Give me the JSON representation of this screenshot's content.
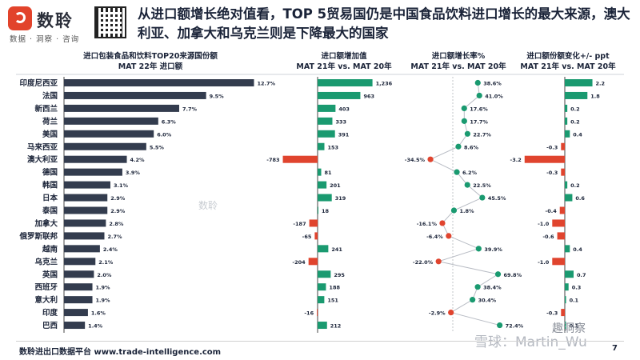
{
  "header": {
    "brand_name": "数聆",
    "brand_tagline": "数据 · 洞察 · 咨询",
    "title": "从进口额增长绝对值看，TOP 5贸易国仍是中国食品饮料进口增长的最大来源，澳大利亚、加拿大和乌克兰则是下降最大的国家"
  },
  "footer": {
    "source": "数聆进出口数据平台 www.trade-intelligence.com",
    "page_number": "7"
  },
  "watermarks": {
    "center_brand": "数聆",
    "social": "趣洞察",
    "platform": "雪球：Martin_Wu"
  },
  "colors": {
    "share_bar": "#333c4e",
    "positive": "#1a9a70",
    "negative": "#e0442e",
    "connector": "#b8bcc4"
  },
  "chart_data": {
    "type": "bar",
    "categories": [
      "印度尼西亚",
      "法国",
      "新西兰",
      "荷兰",
      "美国",
      "马来西亚",
      "澳大利亚",
      "德国",
      "韩国",
      "日本",
      "泰国",
      "加拿大",
      "俄罗斯联邦",
      "越南",
      "乌克兰",
      "英国",
      "西班牙",
      "意大利",
      "印度",
      "巴西"
    ],
    "panels": [
      {
        "header_line1": "进口包装食品和饮料TOP20来源国份额",
        "header_line2": "MAT 22年 进口额",
        "values": [
          12.7,
          9.5,
          7.7,
          6.3,
          6.0,
          5.5,
          4.2,
          3.9,
          3.1,
          2.9,
          2.9,
          2.8,
          2.7,
          2.4,
          2.1,
          2.0,
          1.9,
          1.9,
          1.6,
          1.4
        ],
        "labels": [
          "12.7%",
          "9.5%",
          "7.7%",
          "6.3%",
          "6.0%",
          "5.5%",
          "4.2%",
          "3.9%",
          "3.1%",
          "2.9%",
          "2.9%",
          "2.8%",
          "2.7%",
          "2.4%",
          "2.1%",
          "2.0%",
          "1.9%",
          "1.9%",
          "1.6%",
          "1.4%"
        ]
      },
      {
        "header_line1": "进口额增加值",
        "header_line2": "MAT 21年 vs. MAT 20年",
        "values": [
          1236,
          963,
          403,
          333,
          391,
          153,
          -783,
          81,
          201,
          319,
          18,
          -187,
          -65,
          241,
          -204,
          295,
          188,
          151,
          -16,
          212
        ],
        "labels": [
          "1,236",
          "963",
          "403",
          "333",
          "391",
          "153",
          "-783",
          "81",
          "201",
          "319",
          "18",
          "-187",
          "-65",
          "241",
          "-204",
          "295",
          "188",
          "151",
          "-16",
          "212"
        ]
      },
      {
        "header_line1": "进口额增长率%",
        "header_line2": "MAT 21年 vs. MAT 20年",
        "values": [
          38.6,
          41.0,
          17.6,
          17.7,
          22.7,
          8.6,
          -34.5,
          6.2,
          22.5,
          45.5,
          1.8,
          -16.1,
          -6.4,
          39.9,
          -22.0,
          69.8,
          38.4,
          30.4,
          -2.9,
          72.4
        ],
        "labels": [
          "38.6%",
          "41.0%",
          "17.6%",
          "17.7%",
          "22.7%",
          "8.6%",
          "-34.5%",
          "6.2%",
          "22.5%",
          "45.5%",
          "1.8%",
          "-16.1%",
          "-6.4%",
          "39.9%",
          "-22.0%",
          "69.8%",
          "38.4%",
          "30.4%",
          "-2.9%",
          "72.4%"
        ]
      },
      {
        "header_line1": "进口额份额变化+/- ppt",
        "header_line2": "MAT 21年 vs. MAT 20年",
        "values": [
          2.2,
          1.8,
          0.2,
          0.2,
          0.4,
          -0.3,
          -3.2,
          -0.3,
          0.2,
          0.6,
          -0.4,
          -1.0,
          -0.6,
          0.4,
          -1.0,
          0.7,
          0.3,
          0.1,
          -0.3,
          0.1
        ],
        "labels": [
          "2.2",
          "1.8",
          "0.2",
          "0.2",
          "0.4",
          "-0.3",
          "-3.2",
          "-0.3",
          "0.2",
          "0.6",
          "-0.4",
          "-1.0",
          "-0.6",
          "0.4",
          "-1.0",
          "0.7",
          "0.3",
          "0.1",
          "-0.3",
          "0.1"
        ]
      }
    ]
  }
}
